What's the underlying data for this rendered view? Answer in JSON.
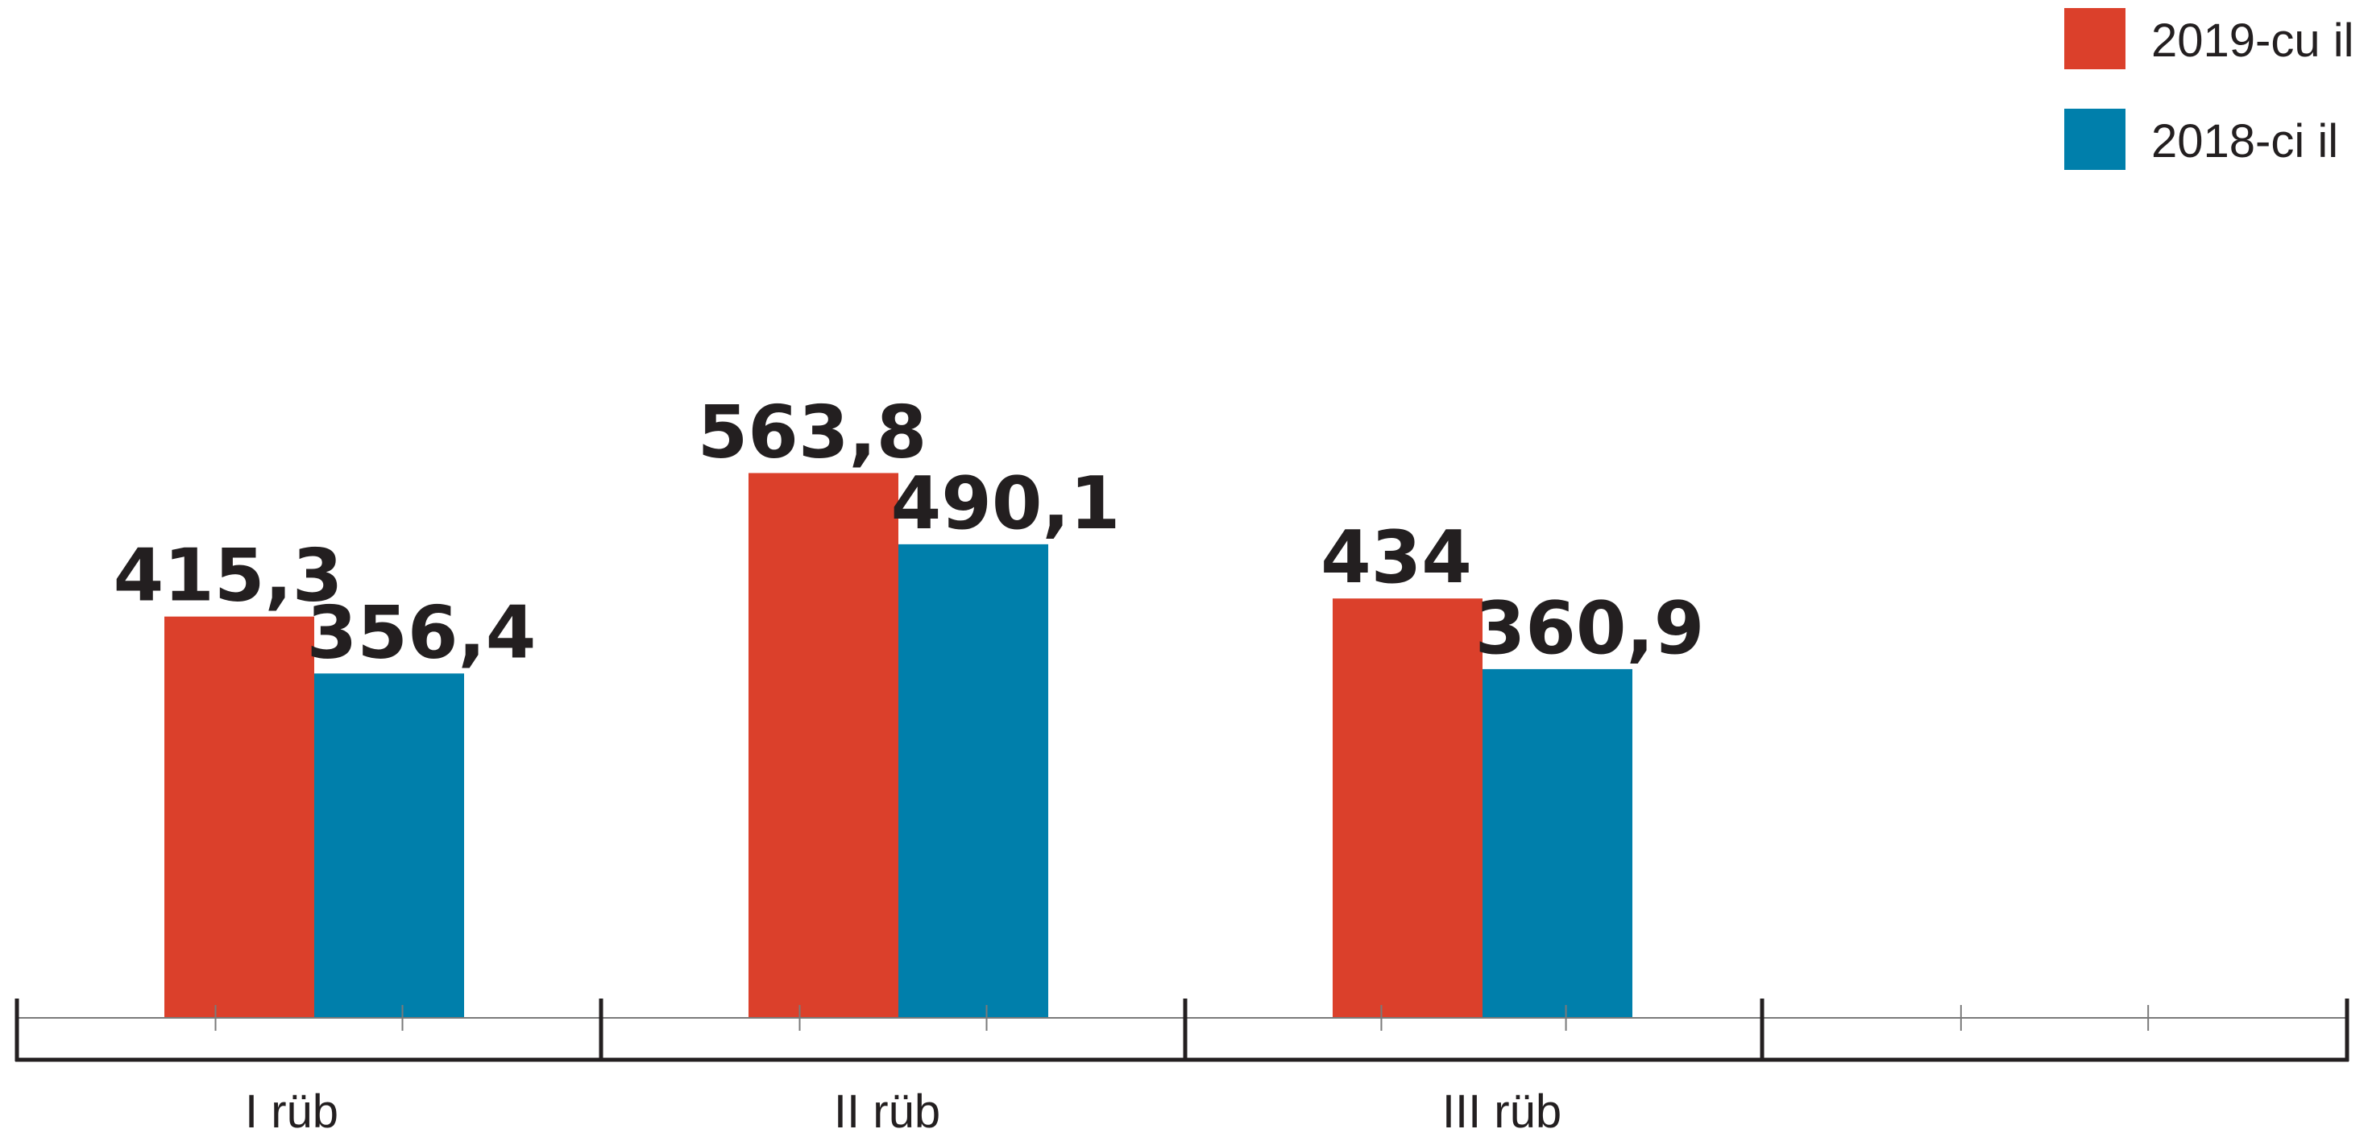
{
  "chart_data": {
    "type": "bar",
    "title": "",
    "xlabel": "",
    "ylabel": "",
    "categories": [
      "I rüb",
      "II rüb",
      "III rüb",
      ""
    ],
    "series": [
      {
        "name": "2019-cu il",
        "color": "#db402b",
        "values": [
          415.3,
          563.8,
          434,
          null
        ],
        "labels": [
          "415,3",
          "563,8",
          "434",
          ""
        ]
      },
      {
        "name": "2018-ci il",
        "color": "#007fab",
        "values": [
          356.4,
          490.1,
          360.9,
          null
        ],
        "labels": [
          "356,4",
          "490,1",
          "360,9",
          ""
        ]
      }
    ],
    "ylim": [
      0,
      600
    ],
    "grid": false,
    "legend_position": "top-right",
    "axis_color": "#231f20",
    "text_color": "#231f20"
  }
}
